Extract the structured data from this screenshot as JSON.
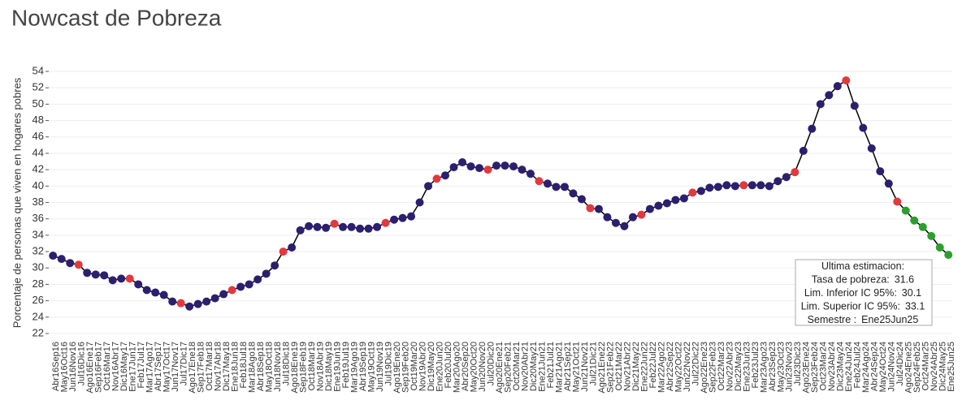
{
  "chart_data": {
    "type": "line",
    "title": "Nowcast de Pobreza",
    "y_label": "Porcentaje de personas que viven en hogares pobres",
    "categories": [
      "Abr16Sep16",
      "May16Oct16",
      "Jun16Nov16",
      "Jul16Dic16",
      "Ago16Ene17",
      "Sep16Feb17",
      "Oct16Mar17",
      "Nov16Abr17",
      "Dic16May17",
      "Ene17Jun17",
      "Feb17Jul17",
      "Mar17Ago17",
      "Abr17Sep17",
      "May17Oct17",
      "Jun17Nov17",
      "Jul17Dic17",
      "Ago17Ene18",
      "Sep17Feb18",
      "Oct17Mar18",
      "Nov17Abr18",
      "Dic17May18",
      "Ene18Jun18",
      "Feb18Jul18",
      "Mar18Ago18",
      "Abr18Sep18",
      "May18Oct18",
      "Jun18Nov18",
      "Jul18Dic18",
      "Ago18Ene19",
      "Sep18Feb19",
      "Oct18Mar19",
      "Nov18Abr19",
      "Dic18May19",
      "Ene19Jun19",
      "Feb19Jul19",
      "Mar19Ago19",
      "Abr19Sep19",
      "May19Oct19",
      "Jun19Nov19",
      "Jul19Dic19",
      "Ago19Ene20",
      "Sep19Feb20",
      "Oct19Mar20",
      "Nov19Abr20",
      "Dic19May20",
      "Ene20Jun20",
      "Feb20Jul20",
      "Mar20Ago20",
      "Abr20Sep20",
      "May20Oct20",
      "Jun20Nov20",
      "Jul20Dic20",
      "Ago20Ene21",
      "Sep20Feb21",
      "Oct20Mar21",
      "Nov20Abr21",
      "Dic20May21",
      "Ene21Jun21",
      "Feb21Jul21",
      "Mar21Ago21",
      "Abr21Sep21",
      "May21Oct21",
      "Jun21Nov21",
      "Jul21Dic21",
      "Ago21Ene22",
      "Sep21Feb22",
      "Oct21Mar22",
      "Nov21Abr22",
      "Dic21May22",
      "Ene22Jun22",
      "Feb22Jul22",
      "Mar22Ago22",
      "Abr22Sep22",
      "May22Oct22",
      "Jun22Nov22",
      "Jul22Dic22",
      "Ago22Ene23",
      "Sep22Feb23",
      "Oct22Mar23",
      "Nov22Abr23",
      "Dic22May23",
      "Ene23Jun23",
      "Feb23Jul23",
      "Mar23Ago23",
      "Abr23Sep23",
      "May23Oct23",
      "Jun23Nov23",
      "Jul23Dic23",
      "Ago23Ene24",
      "Sep23Feb24",
      "Oct23Mar24",
      "Nov23Abr24",
      "Dic23May24",
      "Ene24Jun24",
      "Feb24Jul24",
      "Mar24Ago24",
      "Abr24Sep24",
      "May24Oct24",
      "Jun24Nov24",
      "Jul24Dic24",
      "Ago24Ene25",
      "Sep24Feb25",
      "Oct24Mar25",
      "Nov24Abr25",
      "Dic24May25",
      "Ene25Jun25"
    ],
    "series": [
      {
        "color": "#000000",
        "values": [
          31.5,
          31.1,
          30.6,
          30.4,
          29.4,
          29.2,
          29.1,
          28.5,
          28.7,
          28.7,
          28.0,
          27.3,
          27.0,
          26.7,
          25.9,
          25.7,
          25.3,
          25.6,
          25.9,
          26.3,
          26.8,
          27.3,
          27.7,
          28.0,
          28.6,
          29.3,
          30.3,
          32.0,
          32.5,
          34.6,
          35.1,
          35.0,
          34.9,
          35.4,
          35.0,
          35.0,
          34.8,
          34.8,
          35.0,
          35.5,
          35.9,
          36.1,
          36.3,
          38.0,
          40.0,
          40.9,
          41.3,
          42.3,
          42.9,
          42.4,
          42.2,
          42.0,
          42.5,
          42.5,
          42.4,
          42.0,
          41.5,
          40.6,
          40.3,
          39.9,
          39.9,
          39.1,
          38.4,
          37.3,
          37.2,
          36.2,
          35.5,
          35.1,
          36.2,
          36.5,
          37.2,
          37.6,
          37.9,
          38.3,
          38.5,
          39.2,
          39.4,
          39.8,
          39.9,
          40.1,
          40.0,
          40.1,
          40.1,
          40.1,
          40.0,
          40.6,
          41.1,
          41.7,
          44.3,
          47.0,
          50.0,
          51.1,
          52.2,
          52.9,
          49.8,
          47.1,
          44.6,
          41.8,
          40.3,
          38.1,
          37.0,
          35.8,
          35.0,
          33.9,
          32.5,
          31.6
        ],
        "point_colors": [
          "#2c1f6e",
          "#2c1f6e",
          "#2c1f6e",
          "#e0393e",
          "#2c1f6e",
          "#2c1f6e",
          "#2c1f6e",
          "#2c1f6e",
          "#2c1f6e",
          "#e0393e",
          "#2c1f6e",
          "#2c1f6e",
          "#2c1f6e",
          "#2c1f6e",
          "#2c1f6e",
          "#e0393e",
          "#2c1f6e",
          "#2c1f6e",
          "#2c1f6e",
          "#2c1f6e",
          "#2c1f6e",
          "#e0393e",
          "#2c1f6e",
          "#2c1f6e",
          "#2c1f6e",
          "#2c1f6e",
          "#2c1f6e",
          "#e0393e",
          "#2c1f6e",
          "#2c1f6e",
          "#2c1f6e",
          "#2c1f6e",
          "#2c1f6e",
          "#e0393e",
          "#2c1f6e",
          "#2c1f6e",
          "#2c1f6e",
          "#2c1f6e",
          "#2c1f6e",
          "#e0393e",
          "#2c1f6e",
          "#2c1f6e",
          "#2c1f6e",
          "#2c1f6e",
          "#2c1f6e",
          "#e0393e",
          "#2c1f6e",
          "#2c1f6e",
          "#2c1f6e",
          "#2c1f6e",
          "#2c1f6e",
          "#e0393e",
          "#2c1f6e",
          "#2c1f6e",
          "#2c1f6e",
          "#2c1f6e",
          "#2c1f6e",
          "#e0393e",
          "#2c1f6e",
          "#2c1f6e",
          "#2c1f6e",
          "#2c1f6e",
          "#2c1f6e",
          "#e0393e",
          "#2c1f6e",
          "#2c1f6e",
          "#2c1f6e",
          "#2c1f6e",
          "#2c1f6e",
          "#e0393e",
          "#2c1f6e",
          "#2c1f6e",
          "#2c1f6e",
          "#2c1f6e",
          "#2c1f6e",
          "#e0393e",
          "#2c1f6e",
          "#2c1f6e",
          "#2c1f6e",
          "#2c1f6e",
          "#2c1f6e",
          "#e0393e",
          "#2c1f6e",
          "#2c1f6e",
          "#2c1f6e",
          "#2c1f6e",
          "#2c1f6e",
          "#e0393e",
          "#2c1f6e",
          "#2c1f6e",
          "#2c1f6e",
          "#2c1f6e",
          "#2c1f6e",
          "#e0393e",
          "#2c1f6e",
          "#2c1f6e",
          "#2c1f6e",
          "#2c1f6e",
          "#2c1f6e",
          "#e0393e",
          "#2ca02c",
          "#2ca02c",
          "#2ca02c",
          "#2ca02c",
          "#2ca02c",
          "#2ca02c"
        ]
      }
    ],
    "ylim": [
      22,
      54
    ],
    "yticks": [
      22,
      24,
      26,
      28,
      30,
      32,
      34,
      36,
      38,
      40,
      42,
      44,
      46,
      48,
      50,
      52,
      54
    ],
    "grid": true,
    "tooltip": {
      "title": "Ultima estimacion:",
      "rate_label": "Tasa de pobreza:",
      "lower_label": "Lim. Inferior IC 95%:",
      "lower": 30.1,
      "upper_label": "Lim. Superior IC 95%:",
      "upper": 33.1,
      "semester_label": "Semestre :"
    }
  }
}
